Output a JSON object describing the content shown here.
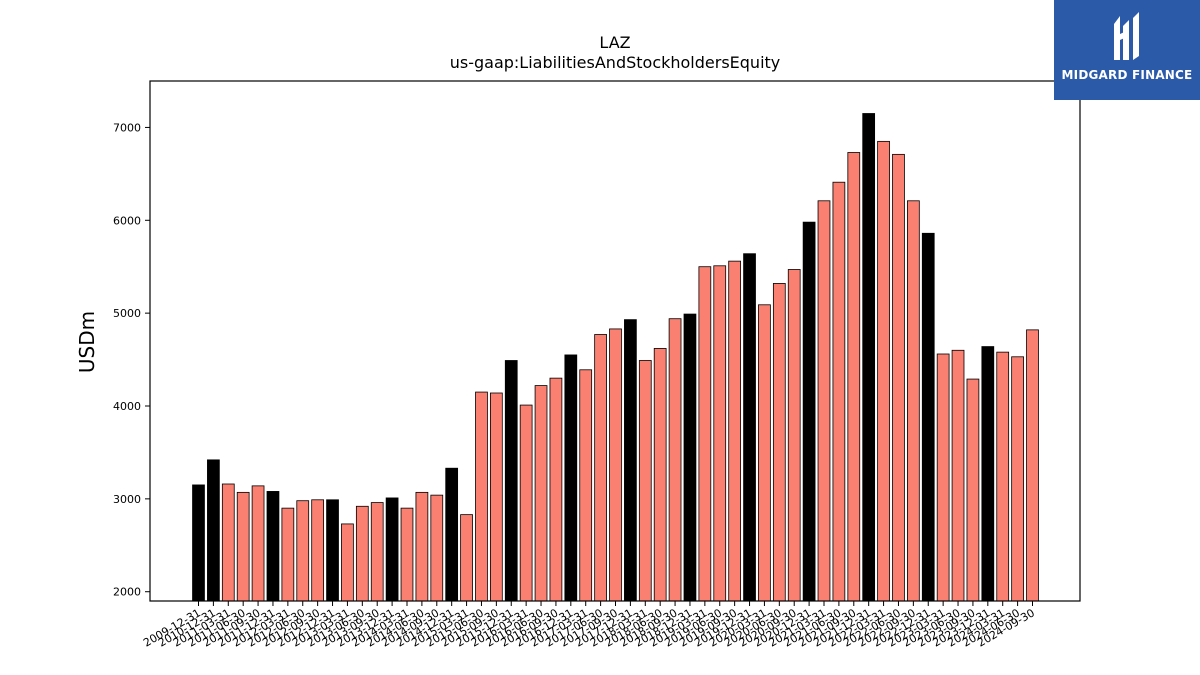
{
  "chart_data": {
    "type": "bar",
    "title": "LAZ",
    "subtitle": "us-gaap:LiabilitiesAndStockholdersEquity",
    "ylabel": "USDm",
    "xlabel": "",
    "ylim": [
      1900,
      7500
    ],
    "yticks": [
      2000,
      3000,
      4000,
      5000,
      6000,
      7000
    ],
    "colors": {
      "annual": "#000000",
      "quarterly": "#fa8072",
      "edge": "#000000"
    },
    "categories": [
      "2009-12-31",
      "2010-12-31",
      "2011-03-31",
      "2011-06-30",
      "2011-09-30",
      "2011-12-31",
      "2012-03-31",
      "2012-06-30",
      "2012-09-30",
      "2012-12-31",
      "2013-03-31",
      "2013-06-30",
      "2013-09-30",
      "2013-12-31",
      "2014-03-31",
      "2014-06-30",
      "2014-09-30",
      "2014-12-31",
      "2015-03-31",
      "2015-06-30",
      "2015-09-30",
      "2015-12-31",
      "2016-03-31",
      "2016-06-30",
      "2016-09-30",
      "2016-12-31",
      "2017-03-31",
      "2017-06-30",
      "2017-09-30",
      "2017-12-31",
      "2018-03-31",
      "2018-06-30",
      "2018-09-30",
      "2018-12-31",
      "2019-03-31",
      "2019-06-30",
      "2019-09-30",
      "2019-12-31",
      "2020-03-31",
      "2020-06-30",
      "2020-09-30",
      "2020-12-31",
      "2021-03-31",
      "2021-06-30",
      "2021-09-30",
      "2021-12-31",
      "2022-03-31",
      "2022-06-30",
      "2022-09-30",
      "2022-12-31",
      "2023-03-31",
      "2023-06-30",
      "2023-09-30",
      "2023-12-31",
      "2024-03-31",
      "2024-06-30",
      "2024-09-30"
    ],
    "values": [
      3150,
      3420,
      3160,
      3070,
      3140,
      3080,
      2900,
      2980,
      2990,
      2990,
      2730,
      2920,
      2960,
      3010,
      2900,
      3070,
      3040,
      3330,
      2830,
      4150,
      4140,
      4490,
      4010,
      4220,
      4300,
      4550,
      4390,
      4770,
      4830,
      4930,
      4490,
      4620,
      4940,
      4990,
      5500,
      5510,
      5560,
      5640,
      5090,
      5320,
      5470,
      5980,
      6210,
      6410,
      6730,
      7150,
      6850,
      6710,
      6210,
      5860,
      4560,
      4600,
      4290,
      4640,
      4580,
      4530,
      4820
    ],
    "annual": [
      true,
      true,
      false,
      false,
      false,
      true,
      false,
      false,
      false,
      true,
      false,
      false,
      false,
      true,
      false,
      false,
      false,
      true,
      false,
      false,
      false,
      true,
      false,
      false,
      false,
      true,
      false,
      false,
      false,
      true,
      false,
      false,
      false,
      true,
      false,
      false,
      false,
      true,
      false,
      false,
      false,
      true,
      false,
      false,
      false,
      true,
      false,
      false,
      false,
      true,
      false,
      false,
      false,
      true,
      false,
      false,
      false
    ]
  },
  "brand": {
    "name": "MIDGARD FINANCE",
    "bg_color": "#2a5aa8",
    "icon": "midgard-logo-icon"
  }
}
